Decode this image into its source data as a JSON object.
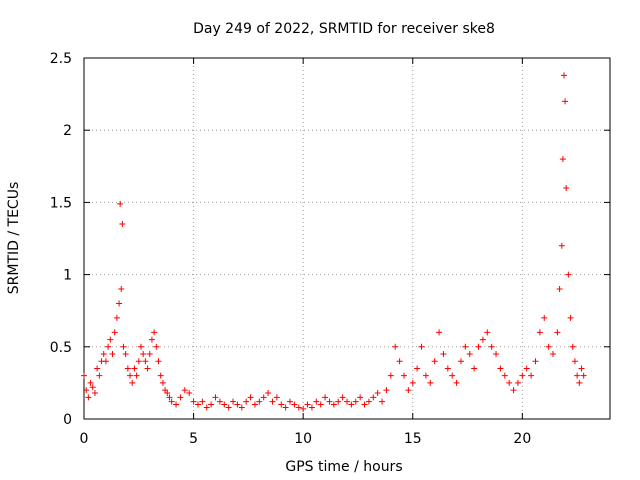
{
  "chart_data": {
    "type": "scatter",
    "title": "Day 249 of 2022, SRMTID for receiver ske8",
    "xlabel": "GPS time / hours",
    "ylabel": "SRMTID / TECUs",
    "xlim": [
      0,
      24
    ],
    "ylim": [
      0,
      2.5
    ],
    "xticks": [
      0,
      5,
      10,
      15,
      20
    ],
    "xtick_labels": [
      "0",
      "5",
      "10",
      "15",
      "20"
    ],
    "yticks": [
      0,
      0.5,
      1,
      1.5,
      2,
      2.5
    ],
    "ytick_labels": [
      "0",
      "0.5",
      "1",
      "1.5",
      "2",
      "2.5"
    ],
    "grid": true,
    "marker": "+",
    "color": "#ff0000",
    "series": [
      {
        "name": "SRMTID",
        "x": [
          0.0,
          0.1,
          0.2,
          0.3,
          0.4,
          0.5,
          0.6,
          0.7,
          0.8,
          0.9,
          1.0,
          1.1,
          1.2,
          1.3,
          1.4,
          1.5,
          1.6,
          1.65,
          1.7,
          1.75,
          1.8,
          1.9,
          2.0,
          2.1,
          2.2,
          2.3,
          2.4,
          2.5,
          2.6,
          2.7,
          2.8,
          2.9,
          3.0,
          3.1,
          3.2,
          3.3,
          3.4,
          3.5,
          3.6,
          3.7,
          3.8,
          3.9,
          4.0,
          4.2,
          4.4,
          4.6,
          4.8,
          5.0,
          5.2,
          5.4,
          5.6,
          5.8,
          6.0,
          6.2,
          6.4,
          6.6,
          6.8,
          7.0,
          7.2,
          7.4,
          7.6,
          7.8,
          8.0,
          8.2,
          8.4,
          8.6,
          8.8,
          9.0,
          9.2,
          9.4,
          9.6,
          9.8,
          10.0,
          10.2,
          10.4,
          10.6,
          10.8,
          11.0,
          11.2,
          11.4,
          11.6,
          11.8,
          12.0,
          12.2,
          12.4,
          12.6,
          12.8,
          13.0,
          13.2,
          13.4,
          13.6,
          13.8,
          14.0,
          14.2,
          14.4,
          14.6,
          14.8,
          15.0,
          15.2,
          15.4,
          15.6,
          15.8,
          16.0,
          16.2,
          16.4,
          16.6,
          16.8,
          17.0,
          17.2,
          17.4,
          17.6,
          17.8,
          18.0,
          18.2,
          18.4,
          18.6,
          18.8,
          19.0,
          19.2,
          19.4,
          19.6,
          19.8,
          20.0,
          20.2,
          20.4,
          20.6,
          20.8,
          21.0,
          21.2,
          21.4,
          21.6,
          21.7,
          21.8,
          21.85,
          21.9,
          21.95,
          22.0,
          22.1,
          22.2,
          22.3,
          22.4,
          22.5,
          22.6,
          22.7,
          22.8
        ],
        "y": [
          0.3,
          0.2,
          0.15,
          0.25,
          0.22,
          0.18,
          0.35,
          0.3,
          0.4,
          0.45,
          0.4,
          0.5,
          0.55,
          0.45,
          0.6,
          0.7,
          0.8,
          1.49,
          0.9,
          1.35,
          0.5,
          0.45,
          0.35,
          0.3,
          0.25,
          0.35,
          0.3,
          0.4,
          0.5,
          0.45,
          0.4,
          0.35,
          0.45,
          0.55,
          0.6,
          0.5,
          0.4,
          0.3,
          0.25,
          0.2,
          0.18,
          0.15,
          0.12,
          0.1,
          0.15,
          0.2,
          0.18,
          0.12,
          0.1,
          0.12,
          0.08,
          0.1,
          0.15,
          0.12,
          0.1,
          0.08,
          0.12,
          0.1,
          0.08,
          0.12,
          0.15,
          0.1,
          0.12,
          0.15,
          0.18,
          0.12,
          0.15,
          0.1,
          0.08,
          0.12,
          0.1,
          0.08,
          0.07,
          0.1,
          0.08,
          0.12,
          0.1,
          0.15,
          0.12,
          0.1,
          0.12,
          0.15,
          0.12,
          0.1,
          0.12,
          0.15,
          0.1,
          0.12,
          0.15,
          0.18,
          0.12,
          0.2,
          0.3,
          0.5,
          0.4,
          0.3,
          0.2,
          0.25,
          0.35,
          0.5,
          0.3,
          0.25,
          0.4,
          0.6,
          0.45,
          0.35,
          0.3,
          0.25,
          0.4,
          0.5,
          0.45,
          0.35,
          0.5,
          0.55,
          0.6,
          0.5,
          0.45,
          0.35,
          0.3,
          0.25,
          0.2,
          0.25,
          0.3,
          0.35,
          0.3,
          0.4,
          0.6,
          0.7,
          0.5,
          0.45,
          0.6,
          0.9,
          1.2,
          1.8,
          2.38,
          2.2,
          1.6,
          1.0,
          0.7,
          0.5,
          0.4,
          0.3,
          0.25,
          0.35,
          0.3
        ]
      }
    ]
  }
}
